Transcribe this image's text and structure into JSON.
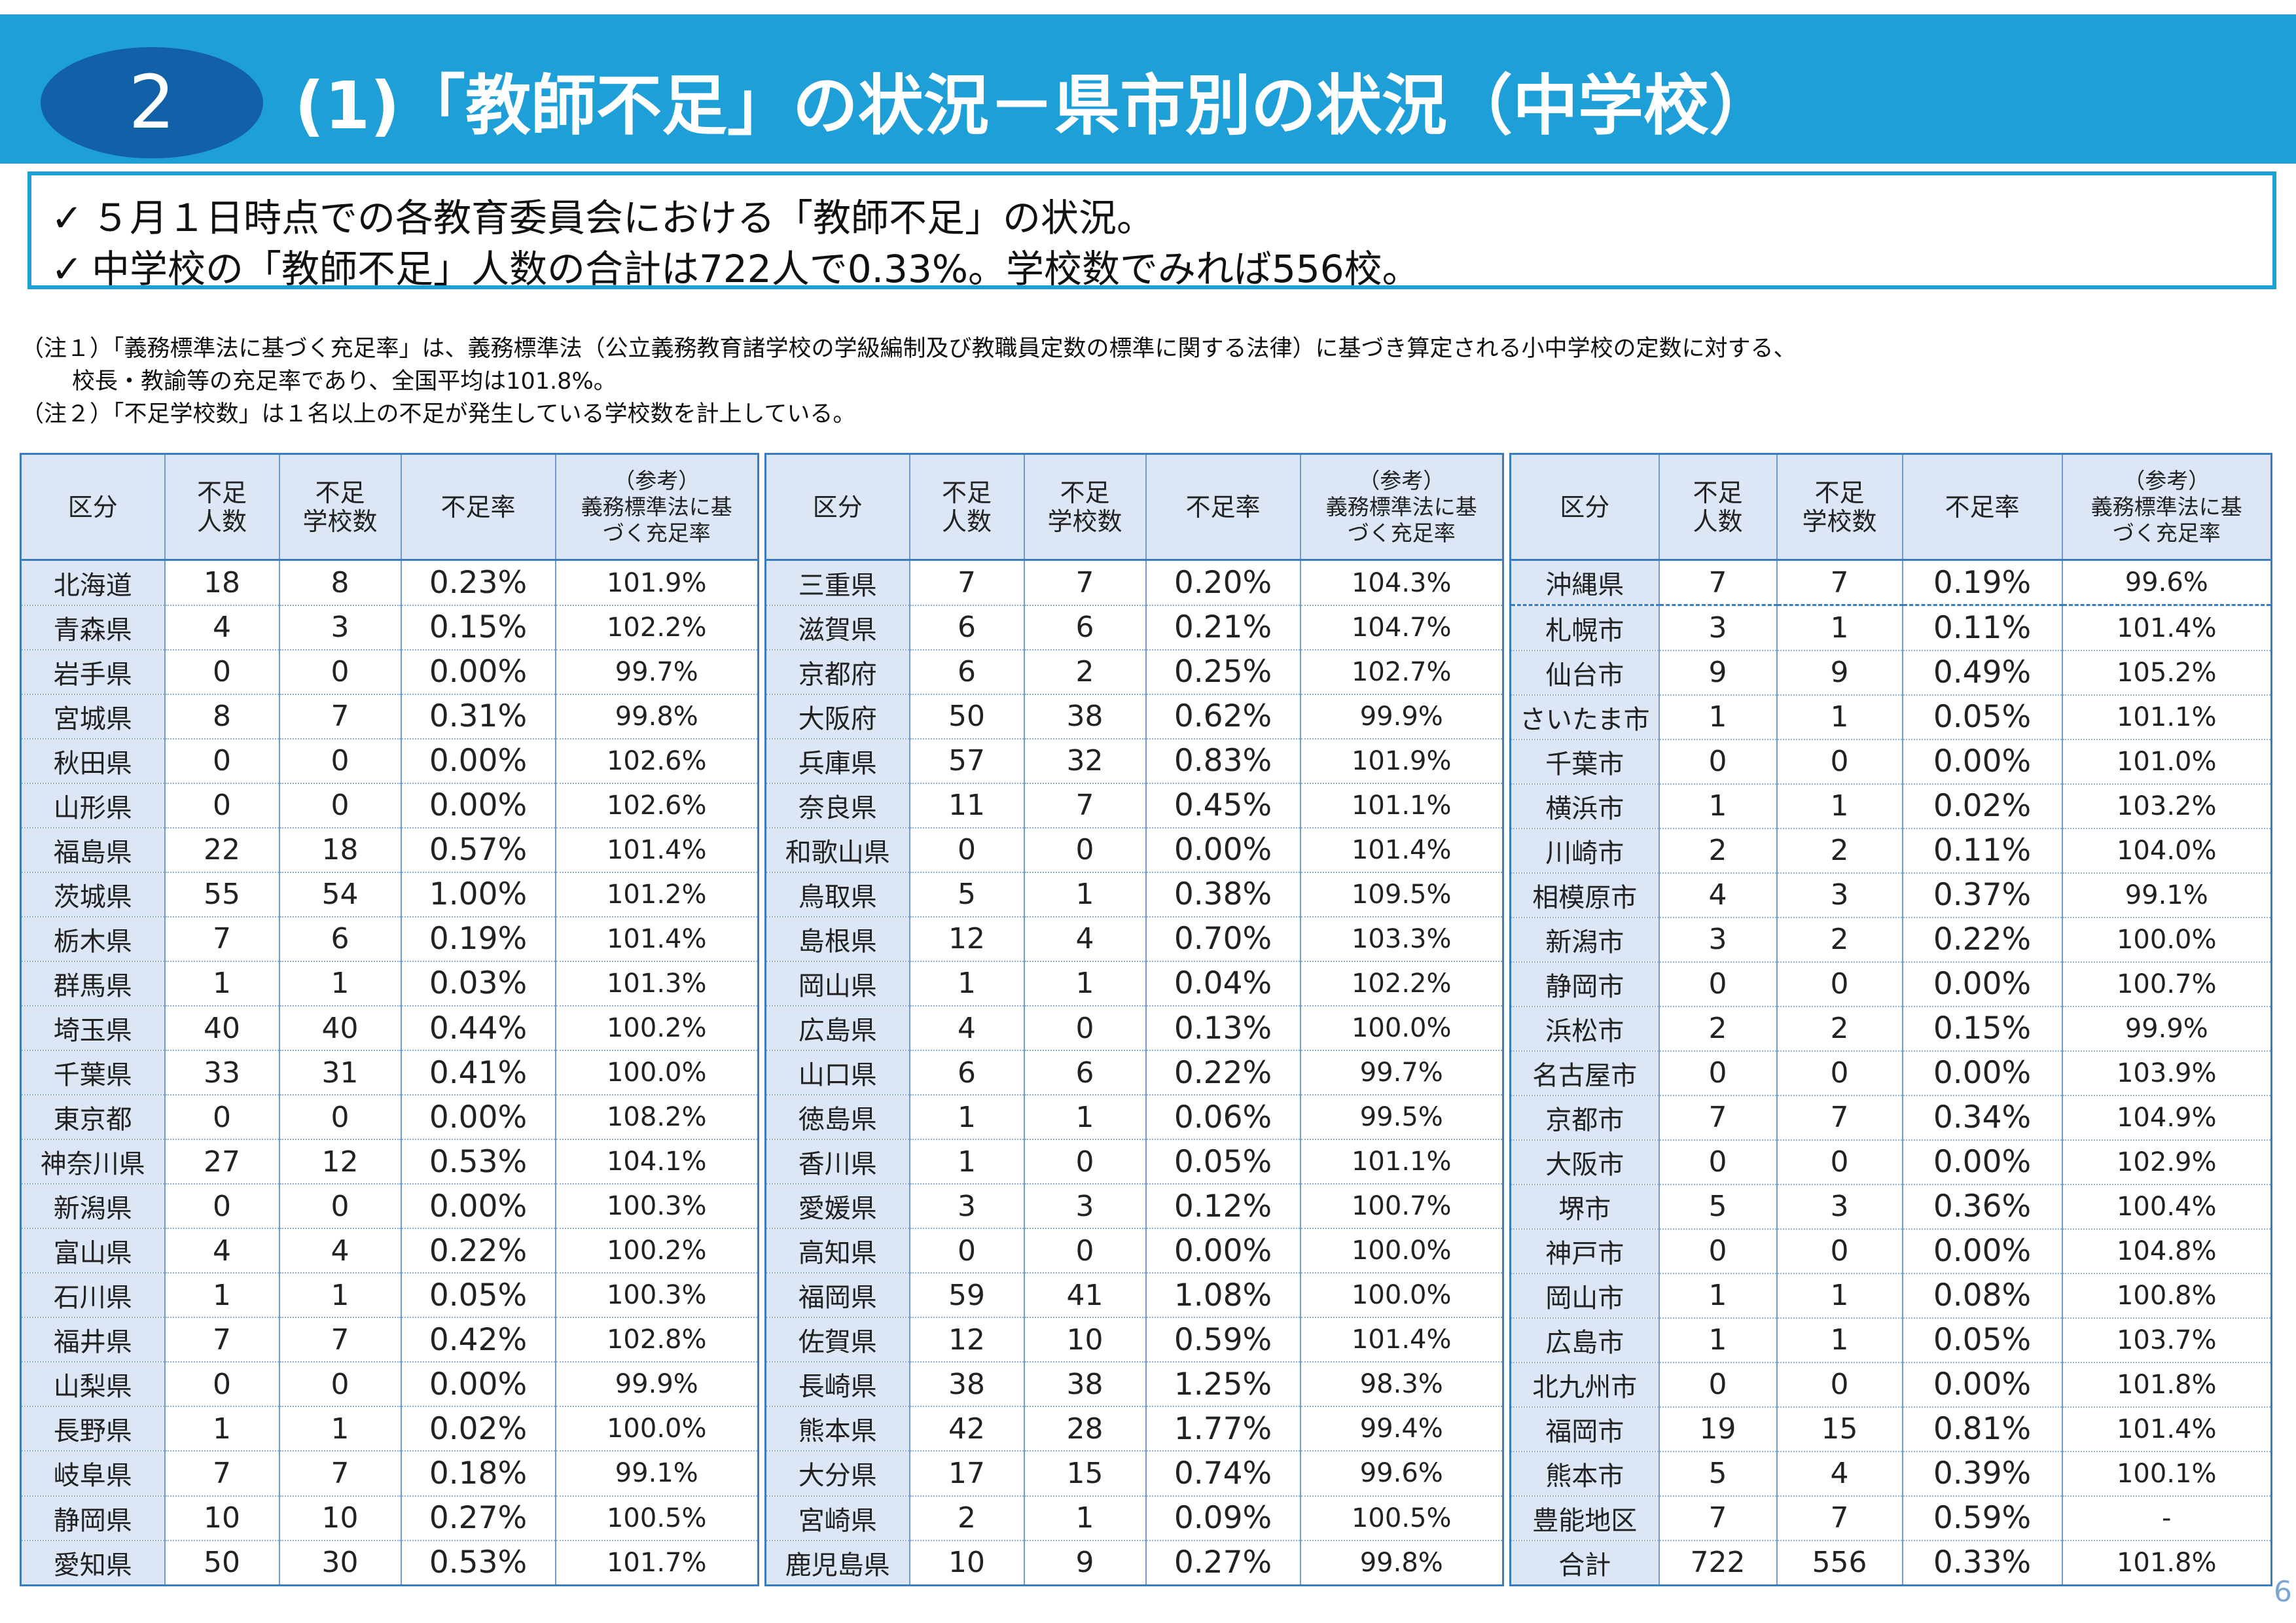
{
  "header": {
    "number": "2",
    "title": "(1)「教師不足」の状況－県市別の状況（中学校）"
  },
  "summary": {
    "check_icon": "✓",
    "lines": [
      "５月１日時点での各教育委員会における「教師不足」の状況。",
      "中学校の「教師不足」人数の合計は722人で0.33%。学校数でみれば556校。"
    ]
  },
  "notes": [
    "（注１）「義務標準法に基づく充足率」は、義務標準法（公立義務教育諸学校の学級編制及び教職員定数の標準に関する法律）に基づき算定される小中学校の定数に対する、",
    "校長・教諭等の充足率であり、全国平均は101.8%。",
    "（注２）「不足学校数」は１名以上の不足が発生している学校数を計上している。"
  ],
  "table_headers": {
    "category": "区分",
    "shortage_people_1": "不足",
    "shortage_people_2": "人数",
    "shortage_schools_1": "不足",
    "shortage_schools_2": "学校数",
    "shortage_rate": "不足率",
    "ref_1": "（参考）",
    "ref_2": "義務標準法に基",
    "ref_3": "づく充足率"
  },
  "tables": [
    {
      "rows": [
        {
          "name": "北海道",
          "people": "18",
          "schools": "8",
          "rate": "0.23%",
          "ref": "101.9%"
        },
        {
          "name": "青森県",
          "people": "4",
          "schools": "3",
          "rate": "0.15%",
          "ref": "102.2%"
        },
        {
          "name": "岩手県",
          "people": "0",
          "schools": "0",
          "rate": "0.00%",
          "ref": "99.7%"
        },
        {
          "name": "宮城県",
          "people": "8",
          "schools": "7",
          "rate": "0.31%",
          "ref": "99.8%"
        },
        {
          "name": "秋田県",
          "people": "0",
          "schools": "0",
          "rate": "0.00%",
          "ref": "102.6%"
        },
        {
          "name": "山形県",
          "people": "0",
          "schools": "0",
          "rate": "0.00%",
          "ref": "102.6%"
        },
        {
          "name": "福島県",
          "people": "22",
          "schools": "18",
          "rate": "0.57%",
          "ref": "101.4%"
        },
        {
          "name": "茨城県",
          "people": "55",
          "schools": "54",
          "rate": "1.00%",
          "ref": "101.2%"
        },
        {
          "name": "栃木県",
          "people": "7",
          "schools": "6",
          "rate": "0.19%",
          "ref": "101.4%"
        },
        {
          "name": "群馬県",
          "people": "1",
          "schools": "1",
          "rate": "0.03%",
          "ref": "101.3%"
        },
        {
          "name": "埼玉県",
          "people": "40",
          "schools": "40",
          "rate": "0.44%",
          "ref": "100.2%"
        },
        {
          "name": "千葉県",
          "people": "33",
          "schools": "31",
          "rate": "0.41%",
          "ref": "100.0%"
        },
        {
          "name": "東京都",
          "people": "0",
          "schools": "0",
          "rate": "0.00%",
          "ref": "108.2%"
        },
        {
          "name": "神奈川県",
          "people": "27",
          "schools": "12",
          "rate": "0.53%",
          "ref": "104.1%"
        },
        {
          "name": "新潟県",
          "people": "0",
          "schools": "0",
          "rate": "0.00%",
          "ref": "100.3%"
        },
        {
          "name": "富山県",
          "people": "4",
          "schools": "4",
          "rate": "0.22%",
          "ref": "100.2%"
        },
        {
          "name": "石川県",
          "people": "1",
          "schools": "1",
          "rate": "0.05%",
          "ref": "100.3%"
        },
        {
          "name": "福井県",
          "people": "7",
          "schools": "7",
          "rate": "0.42%",
          "ref": "102.8%"
        },
        {
          "name": "山梨県",
          "people": "0",
          "schools": "0",
          "rate": "0.00%",
          "ref": "99.9%"
        },
        {
          "name": "長野県",
          "people": "1",
          "schools": "1",
          "rate": "0.02%",
          "ref": "100.0%"
        },
        {
          "name": "岐阜県",
          "people": "7",
          "schools": "7",
          "rate": "0.18%",
          "ref": "99.1%"
        },
        {
          "name": "静岡県",
          "people": "10",
          "schools": "10",
          "rate": "0.27%",
          "ref": "100.5%"
        },
        {
          "name": "愛知県",
          "people": "50",
          "schools": "30",
          "rate": "0.53%",
          "ref": "101.7%"
        }
      ]
    },
    {
      "rows": [
        {
          "name": "三重県",
          "people": "7",
          "schools": "7",
          "rate": "0.20%",
          "ref": "104.3%"
        },
        {
          "name": "滋賀県",
          "people": "6",
          "schools": "6",
          "rate": "0.21%",
          "ref": "104.7%"
        },
        {
          "name": "京都府",
          "people": "6",
          "schools": "2",
          "rate": "0.25%",
          "ref": "102.7%"
        },
        {
          "name": "大阪府",
          "people": "50",
          "schools": "38",
          "rate": "0.62%",
          "ref": "99.9%"
        },
        {
          "name": "兵庫県",
          "people": "57",
          "schools": "32",
          "rate": "0.83%",
          "ref": "101.9%"
        },
        {
          "name": "奈良県",
          "people": "11",
          "schools": "7",
          "rate": "0.45%",
          "ref": "101.1%"
        },
        {
          "name": "和歌山県",
          "people": "0",
          "schools": "0",
          "rate": "0.00%",
          "ref": "101.4%"
        },
        {
          "name": "鳥取県",
          "people": "5",
          "schools": "1",
          "rate": "0.38%",
          "ref": "109.5%"
        },
        {
          "name": "島根県",
          "people": "12",
          "schools": "4",
          "rate": "0.70%",
          "ref": "103.3%"
        },
        {
          "name": "岡山県",
          "people": "1",
          "schools": "1",
          "rate": "0.04%",
          "ref": "102.2%"
        },
        {
          "name": "広島県",
          "people": "4",
          "schools": "0",
          "rate": "0.13%",
          "ref": "100.0%"
        },
        {
          "name": "山口県",
          "people": "6",
          "schools": "6",
          "rate": "0.22%",
          "ref": "99.7%"
        },
        {
          "name": "徳島県",
          "people": "1",
          "schools": "1",
          "rate": "0.06%",
          "ref": "99.5%"
        },
        {
          "name": "香川県",
          "people": "1",
          "schools": "0",
          "rate": "0.05%",
          "ref": "101.1%"
        },
        {
          "name": "愛媛県",
          "people": "3",
          "schools": "3",
          "rate": "0.12%",
          "ref": "100.7%"
        },
        {
          "name": "高知県",
          "people": "0",
          "schools": "0",
          "rate": "0.00%",
          "ref": "100.0%"
        },
        {
          "name": "福岡県",
          "people": "59",
          "schools": "41",
          "rate": "1.08%",
          "ref": "100.0%"
        },
        {
          "name": "佐賀県",
          "people": "12",
          "schools": "10",
          "rate": "0.59%",
          "ref": "101.4%"
        },
        {
          "name": "長崎県",
          "people": "38",
          "schools": "38",
          "rate": "1.25%",
          "ref": "98.3%"
        },
        {
          "name": "熊本県",
          "people": "42",
          "schools": "28",
          "rate": "1.77%",
          "ref": "99.4%"
        },
        {
          "name": "大分県",
          "people": "17",
          "schools": "15",
          "rate": "0.74%",
          "ref": "99.6%"
        },
        {
          "name": "宮崎県",
          "people": "2",
          "schools": "1",
          "rate": "0.09%",
          "ref": "100.5%"
        },
        {
          "name": "鹿児島県",
          "people": "10",
          "schools": "9",
          "rate": "0.27%",
          "ref": "99.8%"
        }
      ]
    },
    {
      "rows": [
        {
          "name": "沖縄県",
          "people": "7",
          "schools": "7",
          "rate": "0.19%",
          "ref": "99.6%"
        },
        {
          "name": "札幌市",
          "people": "3",
          "schools": "1",
          "rate": "0.11%",
          "ref": "101.4%"
        },
        {
          "name": "仙台市",
          "people": "9",
          "schools": "9",
          "rate": "0.49%",
          "ref": "105.2%"
        },
        {
          "name": "さいたま市",
          "people": "1",
          "schools": "1",
          "rate": "0.05%",
          "ref": "101.1%"
        },
        {
          "name": "千葉市",
          "people": "0",
          "schools": "0",
          "rate": "0.00%",
          "ref": "101.0%"
        },
        {
          "name": "横浜市",
          "people": "1",
          "schools": "1",
          "rate": "0.02%",
          "ref": "103.2%"
        },
        {
          "name": "川崎市",
          "people": "2",
          "schools": "2",
          "rate": "0.11%",
          "ref": "104.0%"
        },
        {
          "name": "相模原市",
          "people": "4",
          "schools": "3",
          "rate": "0.37%",
          "ref": "99.1%"
        },
        {
          "name": "新潟市",
          "people": "3",
          "schools": "2",
          "rate": "0.22%",
          "ref": "100.0%"
        },
        {
          "name": "静岡市",
          "people": "0",
          "schools": "0",
          "rate": "0.00%",
          "ref": "100.7%"
        },
        {
          "name": "浜松市",
          "people": "2",
          "schools": "2",
          "rate": "0.15%",
          "ref": "99.9%"
        },
        {
          "name": "名古屋市",
          "people": "0",
          "schools": "0",
          "rate": "0.00%",
          "ref": "103.9%"
        },
        {
          "name": "京都市",
          "people": "7",
          "schools": "7",
          "rate": "0.34%",
          "ref": "104.9%"
        },
        {
          "name": "大阪市",
          "people": "0",
          "schools": "0",
          "rate": "0.00%",
          "ref": "102.9%"
        },
        {
          "name": "堺市",
          "people": "5",
          "schools": "3",
          "rate": "0.36%",
          "ref": "100.4%"
        },
        {
          "name": "神戸市",
          "people": "0",
          "schools": "0",
          "rate": "0.00%",
          "ref": "104.8%"
        },
        {
          "name": "岡山市",
          "people": "1",
          "schools": "1",
          "rate": "0.08%",
          "ref": "100.8%"
        },
        {
          "name": "広島市",
          "people": "1",
          "schools": "1",
          "rate": "0.05%",
          "ref": "103.7%"
        },
        {
          "name": "北九州市",
          "people": "0",
          "schools": "0",
          "rate": "0.00%",
          "ref": "101.8%"
        },
        {
          "name": "福岡市",
          "people": "19",
          "schools": "15",
          "rate": "0.81%",
          "ref": "101.4%"
        },
        {
          "name": "熊本市",
          "people": "5",
          "schools": "4",
          "rate": "0.39%",
          "ref": "100.1%"
        },
        {
          "name": "豊能地区",
          "people": "7",
          "schools": "7",
          "rate": "0.59%",
          "ref": "-"
        },
        {
          "name": "合計",
          "people": "722",
          "schools": "556",
          "rate": "0.33%",
          "ref": "101.8%"
        }
      ]
    }
  ],
  "page_number": "6"
}
